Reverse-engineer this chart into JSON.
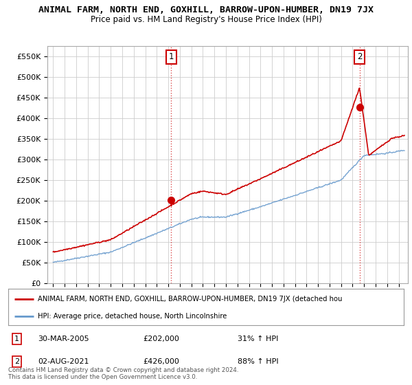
{
  "title": "ANIMAL FARM, NORTH END, GOXHILL, BARROW-UPON-HUMBER, DN19 7JX",
  "subtitle": "Price paid vs. HM Land Registry's House Price Index (HPI)",
  "ylim": [
    0,
    575000
  ],
  "yticks": [
    0,
    50000,
    100000,
    150000,
    200000,
    250000,
    300000,
    350000,
    400000,
    450000,
    500000,
    550000
  ],
  "ytick_labels": [
    "£0",
    "£50K",
    "£100K",
    "£150K",
    "£200K",
    "£250K",
    "£300K",
    "£350K",
    "£400K",
    "£450K",
    "£500K",
    "£550K"
  ],
  "sale1_date": 2005.25,
  "sale1_price": 202000,
  "sale1_label": "1",
  "sale2_date": 2021.6,
  "sale2_price": 426000,
  "sale2_label": "2",
  "red_color": "#cc0000",
  "blue_color": "#6699cc",
  "background_color": "#ffffff",
  "grid_color": "#cccccc",
  "annotation_box_color": "#cc0000",
  "legend_label_red": "ANIMAL FARM, NORTH END, GOXHILL, BARROW-UPON-HUMBER, DN19 7JX (detached hou",
  "legend_label_blue": "HPI: Average price, detached house, North Lincolnshire",
  "footer": "Contains HM Land Registry data © Crown copyright and database right 2024.\nThis data is licensed under the Open Government Licence v3.0.",
  "title_fontsize": 9.5,
  "subtitle_fontsize": 8.5
}
